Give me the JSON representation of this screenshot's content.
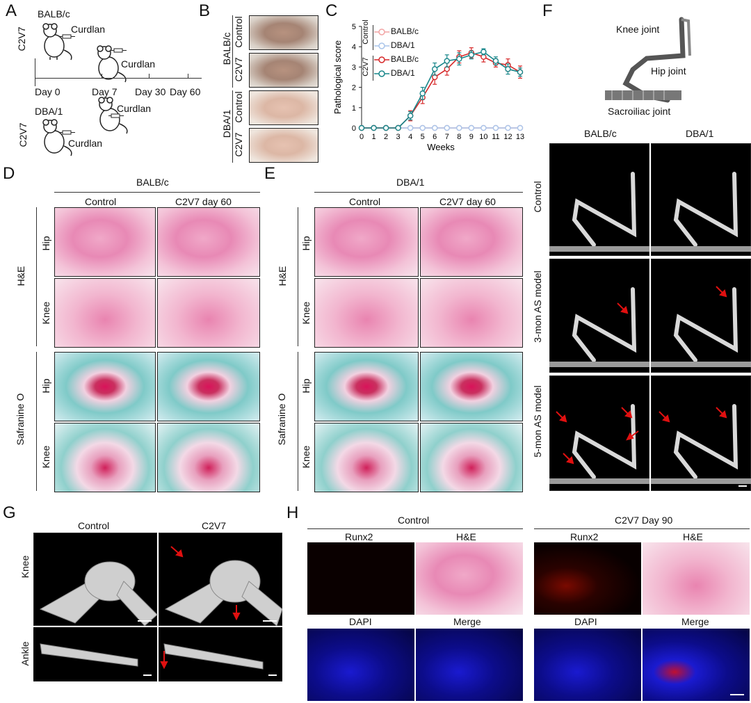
{
  "panels": {
    "A": {
      "label": "A",
      "group_top": "C2V7",
      "strain_top": "BALB/c",
      "injection_1": "Curdlan",
      "injection_2": "Curdlan",
      "injection_3": "Curdlan",
      "injection_4": "Curdlan",
      "strain_bottom": "DBA/1",
      "group_bottom": "C2V7",
      "timeline": [
        "Day 0",
        "Day 7",
        "Day 30",
        "Day 60"
      ]
    },
    "B": {
      "label": "B",
      "strain_1": "BALB/c",
      "strain_2": "DBA/1",
      "rows": [
        "Control",
        "C2V7",
        "Control",
        "C2V7"
      ]
    },
    "C": {
      "label": "C",
      "legend_group_control": "Control",
      "legend_group_c2v7": "C2V7",
      "legend": [
        "BALB/c",
        "DBA/1",
        "BALB/c",
        "DBA/1"
      ]
    },
    "D": {
      "label": "D",
      "strain": "BALB/c",
      "col1": "Control",
      "col2": "C2V7 day 60",
      "stain1": "H&E",
      "stain2": "Safranine O",
      "rows": [
        "Hip",
        "Knee",
        "Hip",
        "Knee"
      ]
    },
    "E": {
      "label": "E",
      "strain": "DBA/1",
      "col1": "Control",
      "col2": "C2V7 day 60",
      "stain1": "H&E",
      "stain2": "Safranine O",
      "rows": [
        "Hip",
        "Knee",
        "Hip",
        "Knee"
      ]
    },
    "F": {
      "label": "F",
      "joint_labels": [
        "Knee joint",
        "Hip joint",
        "Sacroiliac joint"
      ],
      "col1": "BALB/c",
      "col2": "DBA/1",
      "rows": [
        "Control",
        "3-mon AS model",
        "5-mon AS model"
      ]
    },
    "G": {
      "label": "G",
      "col1": "Control",
      "col2": "C2V7",
      "rows": [
        "Knee",
        "Ankle"
      ]
    },
    "H": {
      "label": "H",
      "group1": "Control",
      "group2": "C2V7 Day 90",
      "tiles_top": [
        "Runx2",
        "H&E",
        "Runx2",
        "H&E"
      ],
      "tiles_bottom": [
        "DAPI",
        "Merge",
        "DAPI",
        "Merge"
      ]
    }
  },
  "colors": {
    "balbc_control": "#f2a4a4",
    "dba_control": "#a9c4ea",
    "balbc_c2v7": "#d62728",
    "dba_c2v7": "#17868a",
    "arrow_red": "#e01010"
  },
  "chart_data": {
    "type": "line",
    "xlabel": "Weeks",
    "ylabel": "Pathological score",
    "x": [
      0,
      1,
      2,
      3,
      4,
      5,
      6,
      7,
      8,
      9,
      10,
      11,
      12,
      13
    ],
    "xlim": [
      0,
      13
    ],
    "ylim": [
      0,
      5
    ],
    "yticks": [
      0,
      1,
      2,
      3,
      4,
      5
    ],
    "series": [
      {
        "name": "BALB/c",
        "group": "Control",
        "values": [
          0,
          0,
          0,
          0,
          0,
          0,
          0,
          0,
          0,
          0,
          0,
          0,
          0,
          0
        ],
        "err": [
          0,
          0,
          0,
          0,
          0,
          0,
          0,
          0,
          0,
          0,
          0,
          0,
          0,
          0
        ]
      },
      {
        "name": "DBA/1",
        "group": "Control",
        "values": [
          0,
          0,
          0,
          0,
          0,
          0,
          0,
          0,
          0,
          0,
          0,
          0,
          0,
          0
        ],
        "err": [
          0,
          0,
          0,
          0,
          0,
          0,
          0,
          0,
          0,
          0,
          0,
          0,
          0,
          0
        ]
      },
      {
        "name": "BALB/c",
        "group": "C2V7",
        "values": [
          0,
          0,
          0,
          0,
          0.6,
          1.5,
          2.5,
          2.9,
          3.5,
          3.7,
          3.5,
          3.2,
          3.1,
          2.75
        ],
        "err": [
          0,
          0,
          0,
          0,
          0.25,
          0.3,
          0.35,
          0.3,
          0.3,
          0.25,
          0.25,
          0.2,
          0.3,
          0.3
        ]
      },
      {
        "name": "DBA/1",
        "group": "C2V7",
        "values": [
          0,
          0,
          0,
          0,
          0.6,
          1.7,
          2.9,
          3.3,
          3.4,
          3.6,
          3.75,
          3.3,
          2.9,
          2.75
        ],
        "err": [
          0,
          0,
          0,
          0,
          0.2,
          0.3,
          0.3,
          0.3,
          0.3,
          0.2,
          0.15,
          0.2,
          0.25,
          0.2
        ]
      }
    ]
  }
}
